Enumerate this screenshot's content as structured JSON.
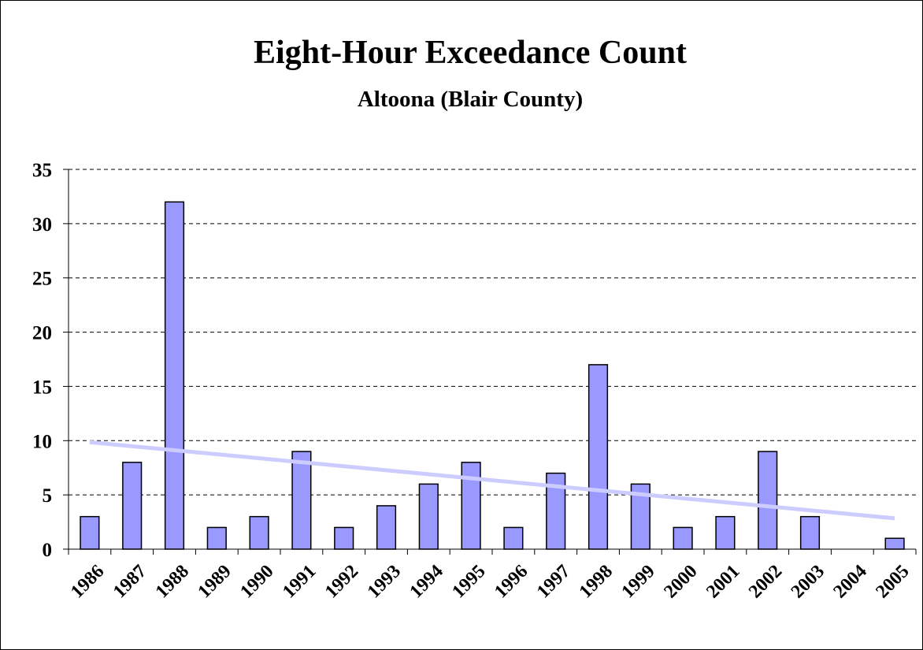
{
  "chart_data": {
    "type": "bar",
    "title": "Eight-Hour Exceedance Count",
    "subtitle": "Altoona (Blair County)",
    "categories": [
      "1986",
      "1987",
      "1988",
      "1989",
      "1990",
      "1991",
      "1992",
      "1993",
      "1994",
      "1995",
      "1996",
      "1997",
      "1998",
      "1999",
      "2000",
      "2001",
      "2002",
      "2003",
      "2004",
      "2005"
    ],
    "values": [
      3,
      8,
      32,
      2,
      3,
      9,
      2,
      4,
      6,
      8,
      2,
      7,
      17,
      6,
      2,
      3,
      9,
      3,
      0,
      1
    ],
    "color": "#9999ff",
    "ylim": [
      0,
      35
    ],
    "yticks": [
      0,
      5,
      10,
      15,
      20,
      25,
      30,
      35
    ],
    "grid": true,
    "trendline": {
      "type": "linear",
      "color": "#ccccff"
    }
  }
}
